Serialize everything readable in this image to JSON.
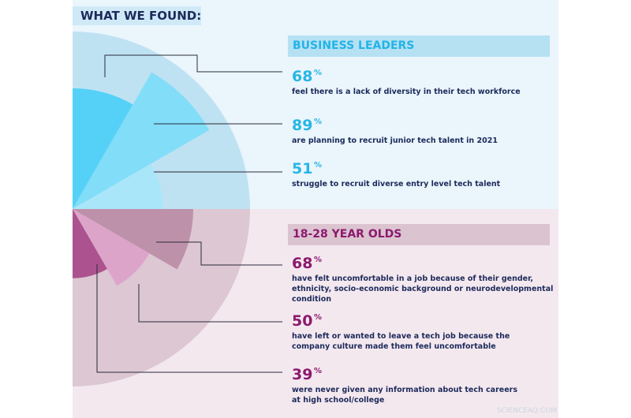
{
  "header": {
    "title": "WHAT WE FOUND:"
  },
  "sections": [
    {
      "title": "BUSINESS LEADERS",
      "items": [
        {
          "value": 68,
          "unit": "%",
          "lines": [
            "feel there is a lack of diversity in their tech workforce"
          ]
        },
        {
          "value": 89,
          "unit": "%",
          "lines": [
            "are planning to recruit junior tech talent in 2021"
          ]
        },
        {
          "value": 51,
          "unit": "%",
          "lines": [
            "struggle to recruit diverse entry level tech talent"
          ]
        }
      ]
    },
    {
      "title": "18-28 YEAR OLDS",
      "items": [
        {
          "value": 68,
          "unit": "%",
          "lines": [
            "have felt uncomfortable in a job because of their gender,",
            "ethnicity, socio-economic background or neurodevelopmental",
            "condition"
          ]
        },
        {
          "value": 50,
          "unit": "%",
          "lines": [
            "have left or wanted to leave a tech job because the",
            "company culture made them feel uncomfortable"
          ]
        },
        {
          "value": 39,
          "unit": "%",
          "lines": [
            "were never given any information about tech careers",
            "at high school/college"
          ]
        }
      ]
    }
  ],
  "watermark": "SCIENCEAQ.COM"
}
